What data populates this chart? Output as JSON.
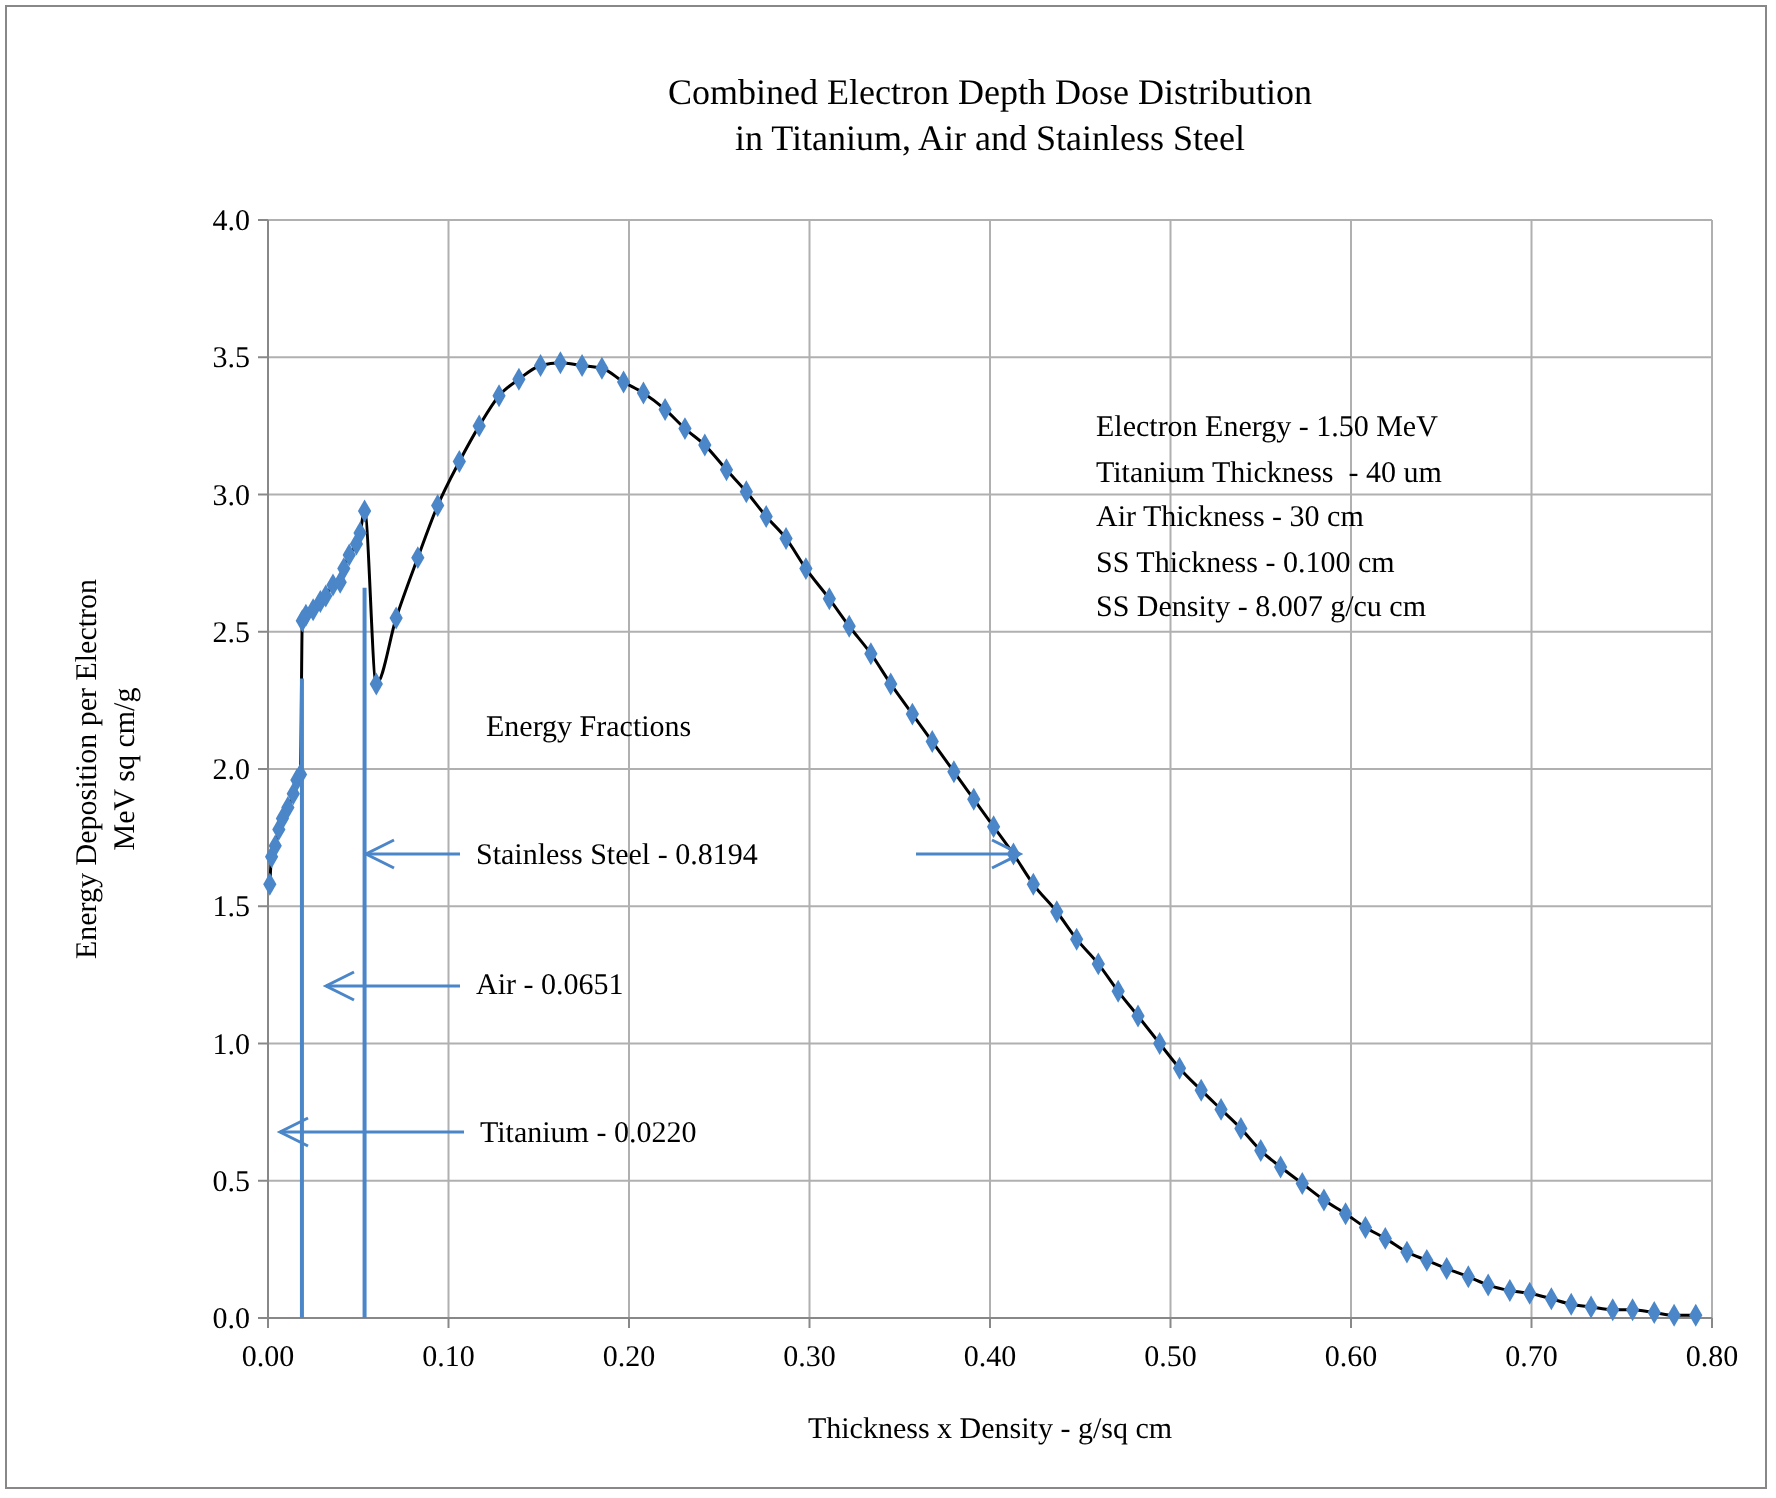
{
  "chart_data": {
    "type": "line",
    "title": "Combined Electron Depth Dose Distribution\nin Titanium, Air and Stainless Steel",
    "xlabel": "Thickness x Density - g/sq cm",
    "ylabel": "Energy Deposition per Electron\nMeV sq cm/g",
    "xlim": [
      0,
      0.8
    ],
    "ylim": [
      0,
      4
    ],
    "xticks": [
      {
        "value": 0,
        "label": "0.00"
      },
      {
        "value": 0.1,
        "label": "0.10"
      },
      {
        "value": 0.2,
        "label": "0.20"
      },
      {
        "value": 0.3,
        "label": "0.30"
      },
      {
        "value": 0.4,
        "label": "0.40"
      },
      {
        "value": 0.5,
        "label": "0.50"
      },
      {
        "value": 0.6,
        "label": "0.60"
      },
      {
        "value": 0.7,
        "label": "0.70"
      },
      {
        "value": 0.8,
        "label": "0.80"
      }
    ],
    "yticks": [
      {
        "value": 0,
        "label": "0.0"
      },
      {
        "value": 0.5,
        "label": "0.5"
      },
      {
        "value": 1,
        "label": "1.0"
      },
      {
        "value": 1.5,
        "label": "1.5"
      },
      {
        "value": 2,
        "label": "2.0"
      },
      {
        "value": 2.5,
        "label": "2.5"
      },
      {
        "value": 3,
        "label": "3.0"
      },
      {
        "value": 3.5,
        "label": "3.5"
      },
      {
        "value": 4,
        "label": "4.0"
      }
    ],
    "grid": true,
    "marker": "diamond",
    "series": [
      {
        "color": "#4a86c8",
        "x": [
          0.001,
          0.002,
          0.004,
          0.006,
          0.008,
          0.011,
          0.014,
          0.016,
          0.018,
          0.019,
          0.021,
          0.025,
          0.029,
          0.032,
          0.036,
          0.04,
          0.042,
          0.045,
          0.049,
          0.051,
          0.0535,
          0.06,
          0.071,
          0.083,
          0.094,
          0.106,
          0.117,
          0.128,
          0.139,
          0.151,
          0.162,
          0.174,
          0.185,
          0.197,
          0.208,
          0.22,
          0.231,
          0.242,
          0.254,
          0.265,
          0.276,
          0.287,
          0.298,
          0.311,
          0.322,
          0.334,
          0.345,
          0.357,
          0.368,
          0.38,
          0.391,
          0.402,
          0.413,
          0.424,
          0.437,
          0.448,
          0.46,
          0.471,
          0.482,
          0.494,
          0.505,
          0.517,
          0.528,
          0.539,
          0.55,
          0.561,
          0.573,
          0.585,
          0.597,
          0.608,
          0.619,
          0.631,
          0.642,
          0.653,
          0.665,
          0.676,
          0.688,
          0.699,
          0.711,
          0.722,
          0.733,
          0.745,
          0.756,
          0.768,
          0.779,
          0.791
        ],
        "values": [
          1.58,
          1.68,
          1.72,
          1.78,
          1.82,
          1.86,
          1.91,
          1.96,
          1.98,
          2.54,
          2.56,
          2.58,
          2.61,
          2.63,
          2.67,
          2.68,
          2.73,
          2.78,
          2.82,
          2.86,
          2.94,
          2.31,
          2.55,
          2.77,
          2.96,
          3.12,
          3.25,
          3.36,
          3.42,
          3.47,
          3.48,
          3.47,
          3.46,
          3.41,
          3.37,
          3.31,
          3.24,
          3.18,
          3.09,
          3.01,
          2.92,
          2.84,
          2.73,
          2.62,
          2.52,
          2.42,
          2.31,
          2.2,
          2.1,
          1.99,
          1.89,
          1.79,
          1.69,
          1.58,
          1.48,
          1.38,
          1.29,
          1.19,
          1.1,
          1,
          0.91,
          0.83,
          0.76,
          0.69,
          0.61,
          0.55,
          0.49,
          0.43,
          0.38,
          0.33,
          0.29,
          0.24,
          0.21,
          0.18,
          0.15,
          0.12,
          0.1,
          0.09,
          0.07,
          0.05,
          0.04,
          0.03,
          0.03,
          0.02,
          0.01,
          0.01
        ]
      },
      {
        "color": "#4a86c8",
        "marker": "none",
        "x": [
          0.0188,
          0.0188
        ],
        "values": [
          0,
          2.33
        ]
      },
      {
        "color": "#4a86c8",
        "marker": "none",
        "x": [
          0.0535,
          0.0535
        ],
        "values": [
          0,
          2.66
        ]
      }
    ],
    "annotations": [
      "Energy Fractions",
      "Stainless Steel - 0.8194",
      "Air - 0.0651",
      "Titanium - 0.0220",
      "Electron Energy - 1.50 MeV",
      "Titanium Thickness  - 40 um",
      "Air Thickness - 30 cm",
      "SS Thickness - 0.100 cm",
      "SS Density - 8.007 g/cu cm"
    ]
  }
}
